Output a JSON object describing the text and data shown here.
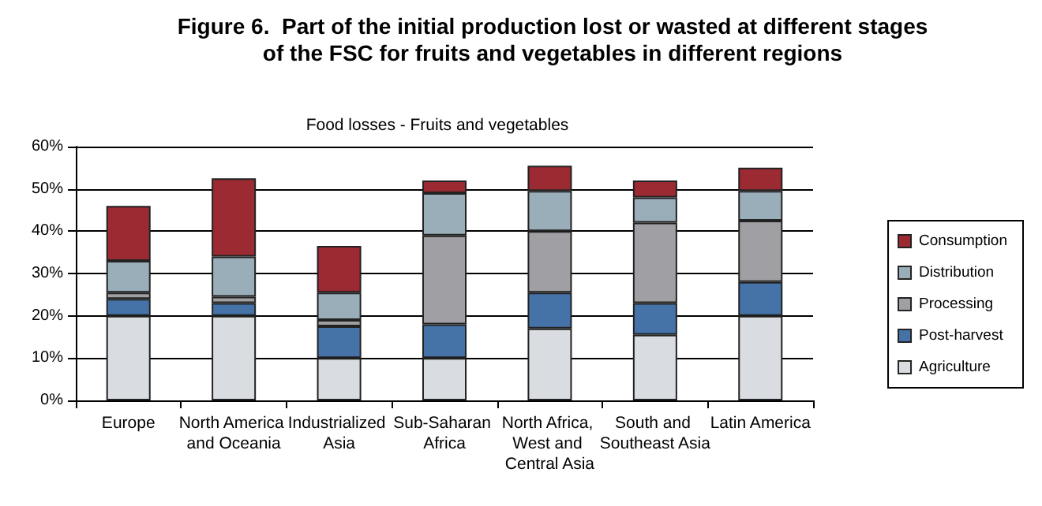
{
  "chart_data": {
    "type": "bar",
    "title": "Figure 6.  Part of the initial production lost or wasted at different stages\nof the FSC for fruits and vegetables in different regions",
    "subtitle": "Food losses - Fruits and vegetables",
    "categories": [
      "Europe",
      "North America and Oceania",
      "Industrialized Asia",
      "Sub-Saharan Africa",
      "North Africa, West and Central Asia",
      "South and Southeast Asia",
      "Latin America"
    ],
    "stacked": true,
    "series": [
      {
        "name": "Agriculture",
        "color": "#d9dde1",
        "values": [
          20,
          20,
          10,
          10,
          17,
          15.5,
          20
        ]
      },
      {
        "name": "Post-harvest",
        "color": "#4573a8",
        "values": [
          4,
          3,
          7.5,
          8,
          8.5,
          7.5,
          8
        ]
      },
      {
        "name": "Processing",
        "color": "#a0a0a4",
        "values": [
          1.5,
          1.5,
          1.5,
          21,
          14.5,
          19,
          14.5
        ]
      },
      {
        "name": "Distribution",
        "color": "#9aaeba",
        "values": [
          7.5,
          9.5,
          6.5,
          10,
          9.5,
          6,
          7
        ]
      },
      {
        "name": "Consumption",
        "color": "#9b2a33",
        "values": [
          13,
          18.5,
          11,
          3,
          6,
          4,
          5.5
        ]
      }
    ],
    "ylim": [
      0,
      60
    ],
    "yticks": [
      {
        "value": 0,
        "label": "0%"
      },
      {
        "value": 10,
        "label": "10%"
      },
      {
        "value": 20,
        "label": "20%"
      },
      {
        "value": 30,
        "label": "30%"
      },
      {
        "value": 40,
        "label": "40%"
      },
      {
        "value": 50,
        "label": "50%"
      },
      {
        "value": 60,
        "label": "60%"
      }
    ],
    "grid": "y",
    "legend": "right"
  }
}
